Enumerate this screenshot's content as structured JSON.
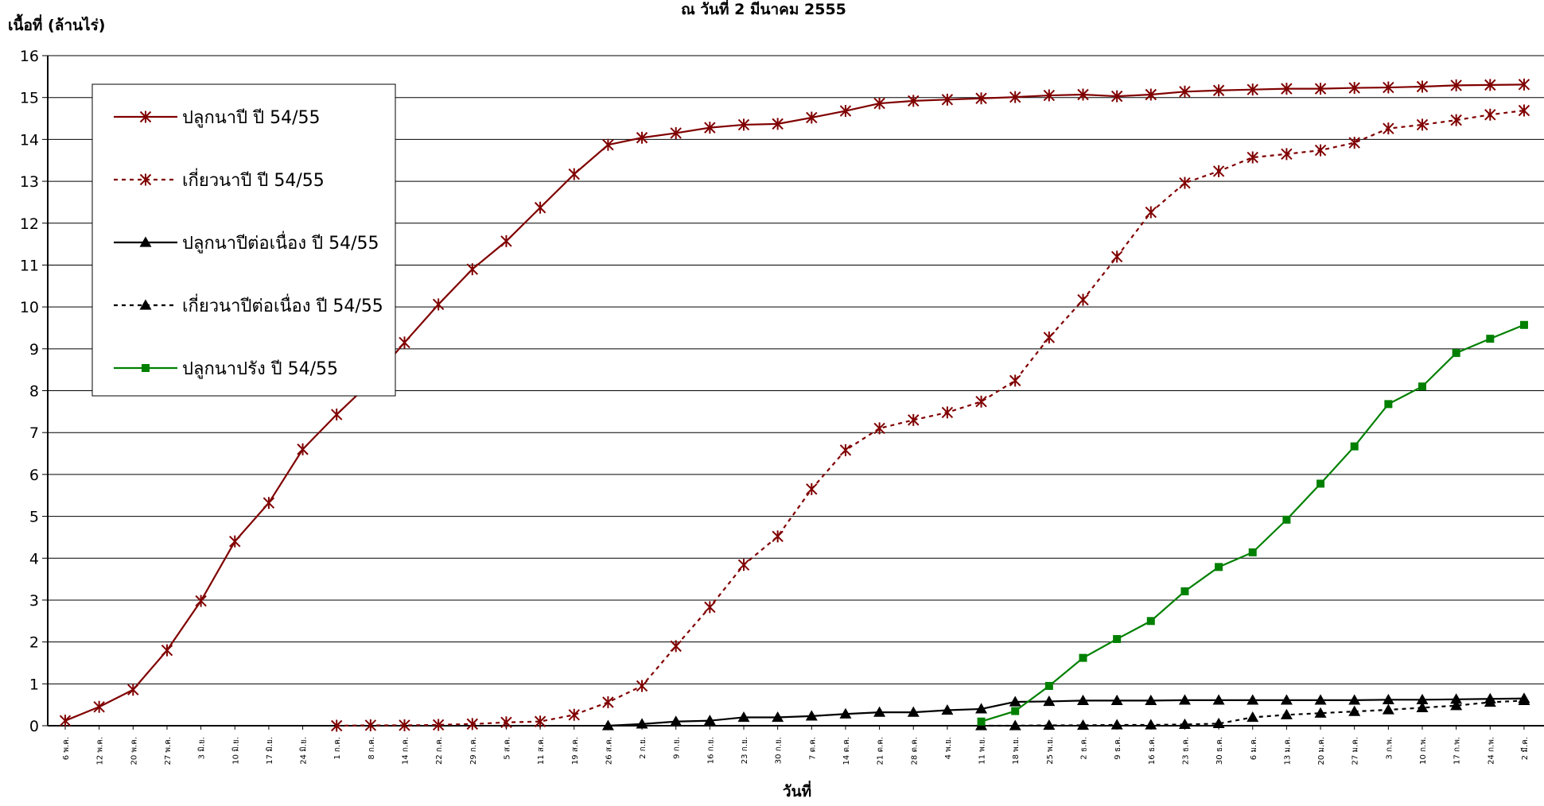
{
  "chart_data": {
    "type": "line",
    "title": "ณ  วันที่ 2 มีนาคม 2555",
    "ylabel": "เนื้อที่ (ล้านไร่)",
    "xlabel": "วันที่",
    "ylim": [
      0,
      16
    ],
    "yticks": [
      0,
      1,
      2,
      3,
      4,
      5,
      6,
      7,
      8,
      9,
      10,
      11,
      12,
      13,
      14,
      15,
      16
    ],
    "grid": true,
    "legend_position": "top-left",
    "categories": [
      "6 พ.ค.",
      "12 พ.ค.",
      "20 พ.ค.",
      "27 พ.ค.",
      "3 มิ.ย.",
      "10 มิ.ย.",
      "17 มิ.ย.",
      "24 มิ.ย.",
      "1 ก.ค.",
      "8 ก.ค.",
      "14 ก.ค.",
      "22 ก.ค.",
      "29 ก.ค.",
      "5 ส.ค.",
      "11 ส.ค.",
      "19 ส.ค.",
      "26 ส.ค.",
      "2 ก.ย.",
      "9 ก.ย.",
      "16 ก.ย.",
      "23 ก.ย.",
      "30 ก.ย.",
      "7 ต.ค.",
      "14 ต.ค.",
      "21 ต.ค.",
      "28 ต.ค.",
      "4 พ.ย.",
      "11 พ.ย.",
      "18 พ.ย.",
      "25 พ.ย.",
      "2 ธ.ค.",
      "9 ธ.ค.",
      "16 ธ.ค.",
      "23 ธ.ค.",
      "30 ธ.ค.",
      "6 ม.ค.",
      "13 ม.ค.",
      "20 ม.ค.",
      "27 ม.ค.",
      "3 ก.พ.",
      "10 ก.พ.",
      "17 ก.พ.",
      "24 ก.พ.",
      "2 มี.ค."
    ],
    "series": [
      {
        "name": "ปลูกนาปี     ปี 54/55",
        "color": "#800000",
        "dash": "solid",
        "marker": "asterisk",
        "values": [
          0.12,
          0.45,
          0.86,
          1.8,
          2.98,
          4.4,
          5.32,
          6.6,
          7.43,
          8.2,
          9.15,
          10.06,
          10.9,
          11.57,
          12.37,
          13.17,
          13.87,
          14.04,
          14.15,
          14.28,
          14.35,
          14.37,
          14.52,
          14.68,
          14.86,
          14.92,
          14.95,
          14.98,
          15.01,
          15.05,
          15.07,
          15.03,
          15.07,
          15.14,
          15.17,
          15.19,
          15.21,
          15.21,
          15.23,
          15.24,
          15.26,
          15.29,
          15.3,
          15.31
        ]
      },
      {
        "name": "เกี่ยวนาปี     ปี 54/55",
        "color": "#800000",
        "dash": "dotted",
        "marker": "asterisk",
        "values": [
          null,
          null,
          null,
          null,
          null,
          null,
          null,
          null,
          0.0,
          0.01,
          0.01,
          0.02,
          0.04,
          0.08,
          0.1,
          0.26,
          0.56,
          0.95,
          1.9,
          2.83,
          3.84,
          4.52,
          5.65,
          6.58,
          7.1,
          7.3,
          7.48,
          7.74,
          8.24,
          9.27,
          10.17,
          11.2,
          12.26,
          12.96,
          13.24,
          13.57,
          13.65,
          13.74,
          13.92,
          14.26,
          14.35,
          14.46,
          14.59,
          14.69
        ]
      },
      {
        "name": "ปลูกนาปีต่อเนื่อง ปี 54/55",
        "color": "#000000",
        "dash": "solid",
        "marker": "triangle",
        "values": [
          null,
          null,
          null,
          null,
          null,
          null,
          null,
          null,
          null,
          null,
          null,
          null,
          null,
          null,
          null,
          null,
          0.0,
          0.04,
          0.1,
          0.12,
          0.2,
          0.2,
          0.23,
          0.28,
          0.32,
          0.32,
          0.37,
          0.4,
          0.57,
          0.58,
          0.6,
          0.6,
          0.6,
          0.61,
          0.61,
          0.61,
          0.61,
          0.61,
          0.61,
          0.62,
          0.62,
          0.63,
          0.64,
          0.65
        ]
      },
      {
        "name": "เกี่ยวนาปีต่อเนื่อง ปี 54/55",
        "color": "#000000",
        "dash": "dotted",
        "marker": "triangle",
        "values": [
          null,
          null,
          null,
          null,
          null,
          null,
          null,
          null,
          null,
          null,
          null,
          null,
          null,
          null,
          null,
          null,
          null,
          null,
          null,
          null,
          null,
          null,
          null,
          null,
          null,
          null,
          null,
          0.0,
          0.0,
          0.01,
          0.01,
          0.02,
          0.02,
          0.03,
          0.05,
          0.2,
          0.26,
          0.3,
          0.34,
          0.38,
          0.43,
          0.48,
          0.56,
          0.6
        ]
      },
      {
        "name": "ปลูกนาปรัง ปี 54/55",
        "color": "#008000",
        "dash": "solid",
        "marker": "square",
        "values": [
          null,
          null,
          null,
          null,
          null,
          null,
          null,
          null,
          null,
          null,
          null,
          null,
          null,
          null,
          null,
          null,
          null,
          null,
          null,
          null,
          null,
          null,
          null,
          null,
          null,
          null,
          null,
          0.1,
          0.35,
          0.95,
          1.62,
          2.07,
          2.5,
          3.21,
          3.79,
          4.14,
          4.92,
          5.78,
          6.67,
          7.68,
          8.1,
          8.9,
          9.24,
          9.57
        ]
      }
    ]
  }
}
